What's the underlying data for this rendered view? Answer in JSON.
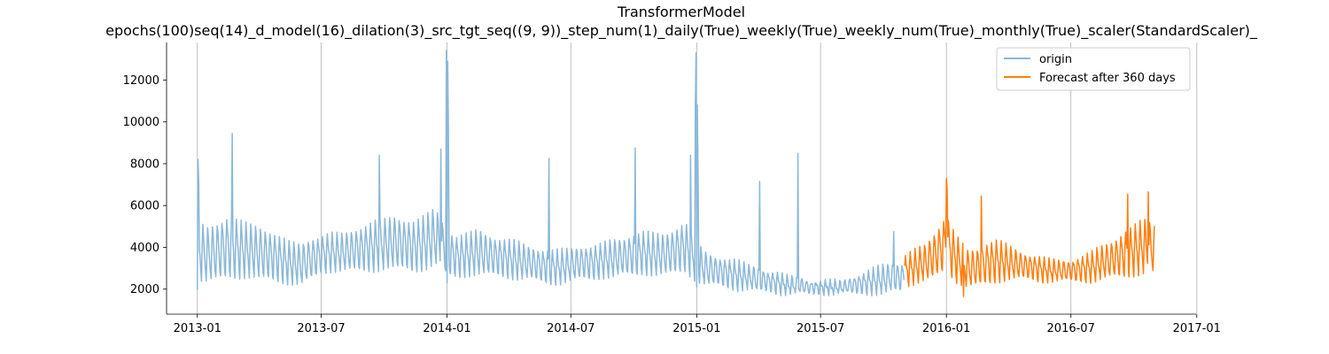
{
  "chart_data": {
    "type": "line",
    "title": "TransformerModel",
    "subtitle": "epochs(100)seq(14)_d_model(16)_dilation(3)_src_tgt_seq((9, 9))_step_num(1)_daily(True)_weekly(True)_weekly_num(True)_monthly(True)_scaler(StandardScaler)_",
    "xlabel": "",
    "ylabel": "",
    "xlim": [
      "2012-11-17",
      "2016-12-31"
    ],
    "ylim": [
      800,
      13800
    ],
    "x_ticks": [
      "2013-01",
      "2013-07",
      "2014-01",
      "2014-07",
      "2015-01",
      "2015-07",
      "2016-01",
      "2016-07",
      "2017-01"
    ],
    "y_ticks": [
      2000,
      4000,
      6000,
      8000,
      10000,
      12000
    ],
    "grid": "vertical major ticks",
    "legend_position": "top-right",
    "series": [
      {
        "name": "origin",
        "color": "#8cb8d8",
        "x_start": "2013-01-01",
        "x_end": "2015-10-31",
        "frequency": "daily",
        "x_keys": [
          "2013-01-01",
          "2013-01-15",
          "2013-02-01",
          "2013-02-15",
          "2013-03-01",
          "2013-03-15",
          "2013-04-01",
          "2013-04-15",
          "2013-05-01",
          "2013-05-15",
          "2013-06-01",
          "2013-06-15",
          "2013-07-01",
          "2013-07-15",
          "2013-08-01",
          "2013-08-15",
          "2013-09-01",
          "2013-09-15",
          "2013-10-01",
          "2013-10-15",
          "2013-11-01",
          "2013-11-15",
          "2013-12-01",
          "2013-12-15",
          "2014-01-01",
          "2014-01-15",
          "2014-02-01",
          "2014-02-15",
          "2014-03-01",
          "2014-03-15",
          "2014-04-01",
          "2014-04-15",
          "2014-05-01",
          "2014-05-15",
          "2014-06-01",
          "2014-06-15",
          "2014-07-01",
          "2014-07-15",
          "2014-08-01",
          "2014-08-15",
          "2014-09-01",
          "2014-09-15",
          "2014-10-01",
          "2014-10-15",
          "2014-11-01",
          "2014-11-15",
          "2014-12-01",
          "2014-12-15",
          "2015-01-01",
          "2015-01-15",
          "2015-02-01",
          "2015-02-15",
          "2015-03-01",
          "2015-03-15",
          "2015-04-01",
          "2015-04-15",
          "2015-05-01",
          "2015-05-15",
          "2015-06-01",
          "2015-06-15",
          "2015-07-01",
          "2015-07-15",
          "2015-08-01",
          "2015-08-15",
          "2015-09-01",
          "2015-09-15",
          "2015-10-01",
          "2015-10-15",
          "2015-10-31"
        ],
        "base_keys": [
          3900,
          3700,
          3900,
          4100,
          4000,
          3900,
          3800,
          3700,
          3500,
          3300,
          3200,
          3500,
          3700,
          3800,
          3800,
          3900,
          4000,
          4100,
          4200,
          4300,
          4200,
          4100,
          4300,
          4600,
          3800,
          3600,
          3700,
          3800,
          3700,
          3600,
          3500,
          3400,
          3300,
          3200,
          3100,
          3100,
          3200,
          3300,
          3300,
          3400,
          3500,
          3600,
          3700,
          3800,
          3700,
          3700,
          3900,
          4100,
          3300,
          3000,
          2900,
          2800,
          2700,
          2600,
          2500,
          2400,
          2300,
          2200,
          2200,
          2100,
          2100,
          2100,
          2100,
          2200,
          2300,
          2400,
          2500,
          2600,
          2600
        ],
        "amp_keys": [
          1400,
          1300,
          1400,
          1500,
          1400,
          1300,
          1300,
          1200,
          1100,
          1000,
          1000,
          1000,
          900,
          900,
          900,
          1000,
          1100,
          1200,
          1200,
          1300,
          1200,
          1200,
          1300,
          1400,
          1100,
          1000,
          1000,
          1100,
          1000,
          900,
          900,
          900,
          800,
          800,
          800,
          800,
          800,
          800,
          800,
          800,
          900,
          900,
          1000,
          1000,
          1000,
          1000,
          1100,
          1200,
          900,
          800,
          700,
          700,
          700,
          600,
          600,
          500,
          500,
          400,
          400,
          300,
          300,
          300,
          300,
          400,
          500,
          600,
          700,
          700,
          700
        ],
        "spikes": [
          {
            "date": "2013-01-01",
            "value": 1950
          },
          {
            "date": "2013-01-02",
            "value": 8200
          },
          {
            "date": "2013-01-03",
            "value": 7200
          },
          {
            "date": "2013-02-21",
            "value": 9450
          },
          {
            "date": "2013-09-24",
            "value": 8400
          },
          {
            "date": "2013-12-23",
            "value": 8700
          },
          {
            "date": "2013-12-31",
            "value": 13400
          },
          {
            "date": "2014-01-01",
            "value": 2300
          },
          {
            "date": "2014-01-02",
            "value": 12900
          },
          {
            "date": "2014-01-03",
            "value": 9800
          },
          {
            "date": "2014-05-30",
            "value": 8250
          },
          {
            "date": "2014-10-03",
            "value": 8750
          },
          {
            "date": "2014-12-23",
            "value": 8400
          },
          {
            "date": "2014-12-30",
            "value": 10900
          },
          {
            "date": "2014-12-31",
            "value": 13300
          },
          {
            "date": "2015-01-01",
            "value": 2100
          },
          {
            "date": "2015-01-02",
            "value": 10800
          },
          {
            "date": "2015-01-03",
            "value": 7500
          },
          {
            "date": "2015-04-03",
            "value": 7150
          },
          {
            "date": "2015-05-29",
            "value": 8500
          },
          {
            "date": "2015-10-16",
            "value": 4750
          }
        ]
      },
      {
        "name": "Forecast after 360 days",
        "color": "#ff7f0e",
        "x_start": "2015-11-01",
        "x_end": "2016-10-31",
        "frequency": "daily",
        "x_keys": [
          "2015-11-01",
          "2015-11-15",
          "2015-12-01",
          "2015-12-15",
          "2016-01-01",
          "2016-01-15",
          "2016-02-01",
          "2016-02-15",
          "2016-03-01",
          "2016-03-15",
          "2016-04-01",
          "2016-04-15",
          "2016-05-01",
          "2016-05-15",
          "2016-06-01",
          "2016-06-15",
          "2016-07-01",
          "2016-07-15",
          "2016-08-01",
          "2016-08-15",
          "2016-09-01",
          "2016-09-15",
          "2016-10-01",
          "2016-10-15",
          "2016-10-31"
        ],
        "base_keys": [
          2900,
          3100,
          3300,
          3700,
          4300,
          3500,
          3000,
          3100,
          3300,
          3400,
          3300,
          3200,
          3100,
          3000,
          2900,
          2900,
          2900,
          3000,
          3100,
          3300,
          3500,
          3700,
          3900,
          4100,
          4000
        ],
        "amp_keys": [
          700,
          800,
          900,
          1100,
          1300,
          1100,
          900,
          900,
          1000,
          1000,
          800,
          700,
          600,
          600,
          500,
          500,
          500,
          600,
          700,
          800,
          900,
          1100,
          1200,
          1300,
          1200
        ],
        "spikes": [
          {
            "date": "2016-01-01",
            "value": 7300
          },
          {
            "date": "2016-01-02",
            "value": 6800
          },
          {
            "date": "2016-01-26",
            "value": 1650
          },
          {
            "date": "2016-02-21",
            "value": 6450
          },
          {
            "date": "2016-09-22",
            "value": 6550
          },
          {
            "date": "2016-10-22",
            "value": 6650
          }
        ]
      }
    ]
  }
}
